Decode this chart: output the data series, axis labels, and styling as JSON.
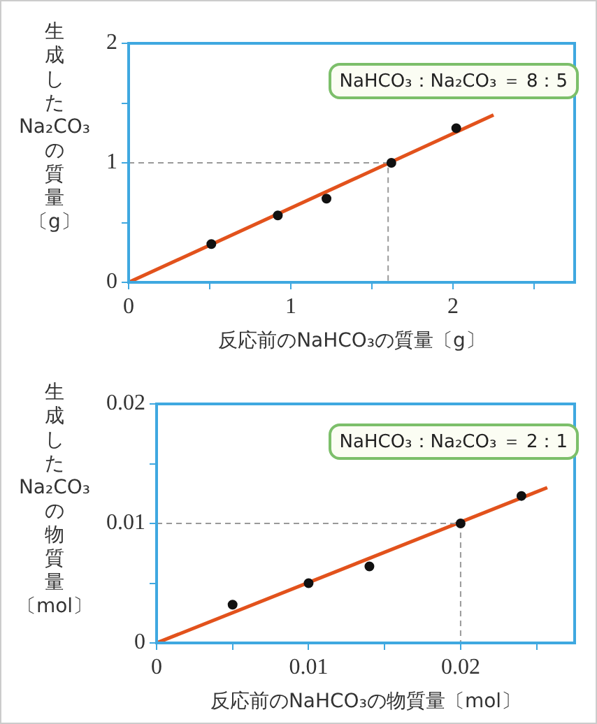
{
  "chart_data": [
    {
      "type": "scatter",
      "xlabel": "反応前のNaHCO₃の質量〔g〕",
      "ylabel": "生成したNa₂CO₃の質量〔g〕",
      "annotations": [
        "NaHCO₃：Na₂CO₃ ＝ 8：5"
      ],
      "xlim": [
        0,
        2.75
      ],
      "xticks": [
        0,
        {
          "value": 0.5,
          "label": null
        },
        1,
        {
          "value": 1.5,
          "label": null
        },
        2,
        {
          "value": 2.5,
          "label": null
        }
      ],
      "ylim": [
        0,
        2
      ],
      "yticks": [
        0,
        {
          "value": 0.5,
          "label": null
        },
        1,
        {
          "value": 1.5,
          "label": null
        },
        2
      ],
      "grid": false,
      "legend": false,
      "series": [
        {
          "type": "line",
          "color": "#999999",
          "line_style": "dashed",
          "marker": "none",
          "x": [
            0,
            1.6,
            1.6
          ],
          "values": [
            1,
            1,
            0
          ]
        },
        {
          "type": "line",
          "color": "#e2521c",
          "line_style": "solid",
          "marker": "none",
          "x": [
            0,
            2.25
          ],
          "values": [
            0,
            1.4
          ]
        },
        {
          "type": "scatter",
          "color": "#111111",
          "marker": "circle",
          "x": [
            0.51,
            0.92,
            1.22,
            1.62,
            2.02
          ],
          "values": [
            0.32,
            0.56,
            0.7,
            1.0,
            1.29
          ]
        }
      ]
    },
    {
      "type": "scatter",
      "xlabel": "反応前のNaHCO₃の物質量〔mol〕",
      "ylabel": "生成したNa₂CO₃の物質量〔mol〕",
      "annotations": [
        "NaHCO₃：Na₂CO₃ ＝ 2：1"
      ],
      "xlim": [
        0,
        0.0275
      ],
      "xticks": [
        0,
        {
          "value": 0.005,
          "label": null
        },
        0.01,
        {
          "value": 0.015,
          "label": null
        },
        0.02,
        {
          "value": 0.025,
          "label": null
        }
      ],
      "ylim": [
        0,
        0.02
      ],
      "yticks": [
        0,
        {
          "value": 0.005,
          "label": null
        },
        0.01,
        {
          "value": 0.015,
          "label": null
        },
        0.02
      ],
      "grid": false,
      "legend": false,
      "series": [
        {
          "type": "line",
          "color": "#999999",
          "line_style": "dashed",
          "marker": "none",
          "x": [
            0,
            0.02,
            0.02
          ],
          "values": [
            0.01,
            0.01,
            0
          ]
        },
        {
          "type": "line",
          "color": "#e2521c",
          "line_style": "solid",
          "marker": "none",
          "x": [
            0,
            0.0257
          ],
          "values": [
            0,
            0.013
          ]
        },
        {
          "type": "scatter",
          "color": "#111111",
          "marker": "circle",
          "x": [
            0.005,
            0.01,
            0.014,
            0.02,
            0.024
          ],
          "values": [
            0.0032,
            0.005,
            0.0064,
            0.01,
            0.0123
          ]
        }
      ]
    }
  ]
}
